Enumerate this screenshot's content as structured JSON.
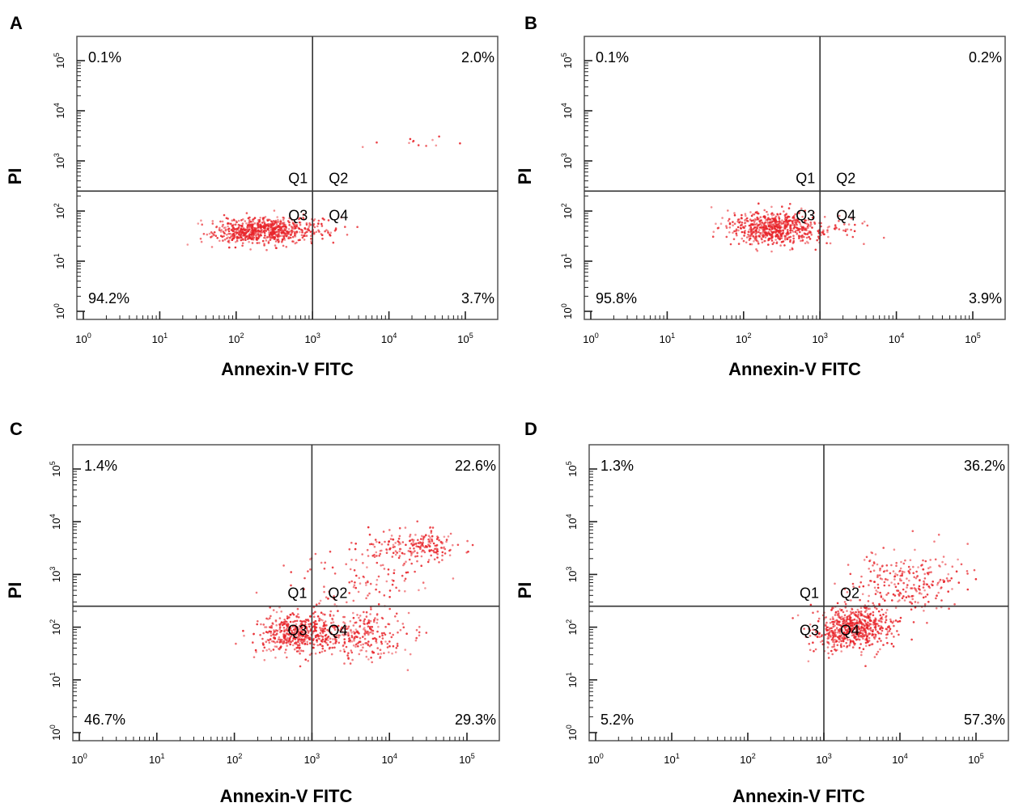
{
  "chart_data": [
    {
      "type": "scatter",
      "panel": "A",
      "xlabel": "Annexin-V FITC",
      "ylabel": "PI",
      "xscale": "log",
      "yscale": "log",
      "xlim": [
        1,
        100000
      ],
      "ylim": [
        1,
        100000
      ],
      "x_ticks": [
        "10^0",
        "10^1",
        "10^2",
        "10^3",
        "10^4",
        "10^5"
      ],
      "y_ticks": [
        "10^0",
        "10^1",
        "10^2",
        "10^3",
        "10^4",
        "10^5"
      ],
      "gate": {
        "x": 1000,
        "y": 250
      },
      "quadrant_labels": [
        "Q1",
        "Q2",
        "Q3",
        "Q4"
      ],
      "quadrant_percents": {
        "Q1": "0.1%",
        "Q2": "2.0%",
        "Q3": "94.2%",
        "Q4": "3.7%"
      },
      "clusters": [
        {
          "cx": 220,
          "cy": 40,
          "sx": 0.33,
          "sy": 0.13,
          "n": 700
        },
        {
          "cx": 1500,
          "cy": 45,
          "sx": 0.22,
          "sy": 0.1,
          "n": 25
        },
        {
          "cx": 25000,
          "cy": 2500,
          "sx": 0.25,
          "sy": 0.12,
          "n": 12
        }
      ],
      "grid": false,
      "legend": "none",
      "point_color": "#e8242a"
    },
    {
      "type": "scatter",
      "panel": "B",
      "xlabel": "Annexin-V FITC",
      "ylabel": "PI",
      "xscale": "log",
      "yscale": "log",
      "xlim": [
        1,
        100000
      ],
      "ylim": [
        1,
        100000
      ],
      "x_ticks": [
        "10^0",
        "10^1",
        "10^2",
        "10^3",
        "10^4",
        "10^5"
      ],
      "y_ticks": [
        "10^0",
        "10^1",
        "10^2",
        "10^3",
        "10^4",
        "10^5"
      ],
      "gate": {
        "x": 1000,
        "y": 250
      },
      "quadrant_labels": [
        "Q1",
        "Q2",
        "Q3",
        "Q4"
      ],
      "quadrant_percents": {
        "Q1": "0.1%",
        "Q2": "0.2%",
        "Q3": "95.8%",
        "Q4": "3.9%"
      },
      "clusters": [
        {
          "cx": 260,
          "cy": 45,
          "sx": 0.3,
          "sy": 0.16,
          "n": 650
        },
        {
          "cx": 1800,
          "cy": 45,
          "sx": 0.22,
          "sy": 0.12,
          "n": 30
        }
      ],
      "grid": false,
      "legend": "none",
      "point_color": "#e8242a"
    },
    {
      "type": "scatter",
      "panel": "C",
      "xlabel": "Annexin-V FITC",
      "ylabel": "PI",
      "xscale": "log",
      "yscale": "log",
      "xlim": [
        1,
        100000
      ],
      "ylim": [
        1,
        100000
      ],
      "x_ticks": [
        "10^0",
        "10^1",
        "10^2",
        "10^3",
        "10^4",
        "10^5"
      ],
      "y_ticks": [
        "10^0",
        "10^1",
        "10^2",
        "10^3",
        "10^4",
        "10^5"
      ],
      "gate": {
        "x": 1000,
        "y": 250
      },
      "quadrant_labels": [
        "Q1",
        "Q2",
        "Q3",
        "Q4"
      ],
      "quadrant_percents": {
        "Q1": "1.4%",
        "Q2": "22.6%",
        "Q3": "46.7%",
        "Q4": "29.3%"
      },
      "clusters": [
        {
          "cx": 650,
          "cy": 75,
          "sx": 0.28,
          "sy": 0.2,
          "n": 460
        },
        {
          "cx": 4000,
          "cy": 70,
          "sx": 0.35,
          "sy": 0.22,
          "n": 260
        },
        {
          "cx": 25000,
          "cy": 3500,
          "sx": 0.32,
          "sy": 0.16,
          "n": 200
        },
        {
          "cx": 5000,
          "cy": 800,
          "sx": 0.45,
          "sy": 0.4,
          "n": 120
        }
      ],
      "grid": false,
      "legend": "none",
      "point_color": "#e8242a"
    },
    {
      "type": "scatter",
      "panel": "D",
      "xlabel": "Annexin-V FITC",
      "ylabel": "PI",
      "xscale": "log",
      "yscale": "log",
      "xlim": [
        1,
        100000
      ],
      "ylim": [
        1,
        100000
      ],
      "x_ticks": [
        "10^0",
        "10^1",
        "10^2",
        "10^3",
        "10^4",
        "10^5"
      ],
      "y_ticks": [
        "10^0",
        "10^1",
        "10^2",
        "10^3",
        "10^4",
        "10^5"
      ],
      "gate": {
        "x": 1000,
        "y": 250
      },
      "quadrant_labels": [
        "Q1",
        "Q2",
        "Q3",
        "Q4"
      ],
      "quadrant_percents": {
        "Q1": "1.3%",
        "Q2": "36.2%",
        "Q3": "5.2%",
        "Q4": "57.3%"
      },
      "clusters": [
        {
          "cx": 2500,
          "cy": 100,
          "sx": 0.25,
          "sy": 0.2,
          "n": 550
        },
        {
          "cx": 12000,
          "cy": 700,
          "sx": 0.35,
          "sy": 0.3,
          "n": 260
        },
        {
          "cx": 1200,
          "cy": 60,
          "sx": 0.15,
          "sy": 0.15,
          "n": 60
        }
      ],
      "grid": false,
      "legend": "none",
      "point_color": "#e8242a"
    }
  ]
}
